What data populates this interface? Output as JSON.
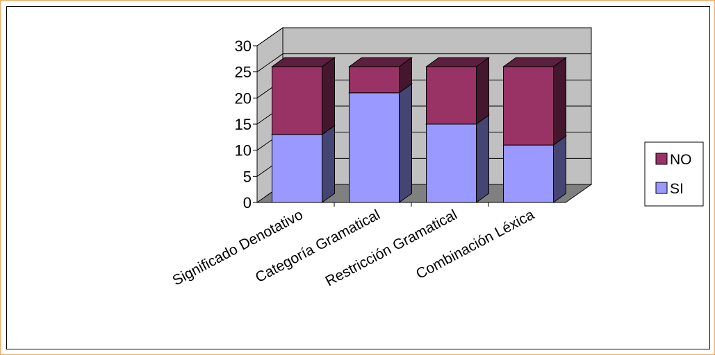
{
  "chart_data": {
    "type": "bar",
    "stacked": true,
    "three_d": true,
    "title": "",
    "xlabel": "",
    "ylabel": "",
    "categories": [
      "Significado Denotativo",
      "Categoría Gramatical",
      "Restricción Gramatical",
      "Combinación Léxica"
    ],
    "series": [
      {
        "name": "SI",
        "values": [
          13,
          21,
          15,
          11
        ],
        "color": "#9999ff"
      },
      {
        "name": "NO",
        "values": [
          13,
          5,
          11,
          15
        ],
        "color": "#993366"
      }
    ],
    "ylim": [
      0,
      30
    ],
    "yticks": [
      0,
      5,
      10,
      15,
      20,
      25,
      30
    ],
    "grid": true,
    "legend_position": "right",
    "legend_order": [
      "NO",
      "SI"
    ],
    "colors": {
      "wall": "#c0c0c0",
      "floor": "#808080",
      "frame": "#f0a860"
    }
  }
}
